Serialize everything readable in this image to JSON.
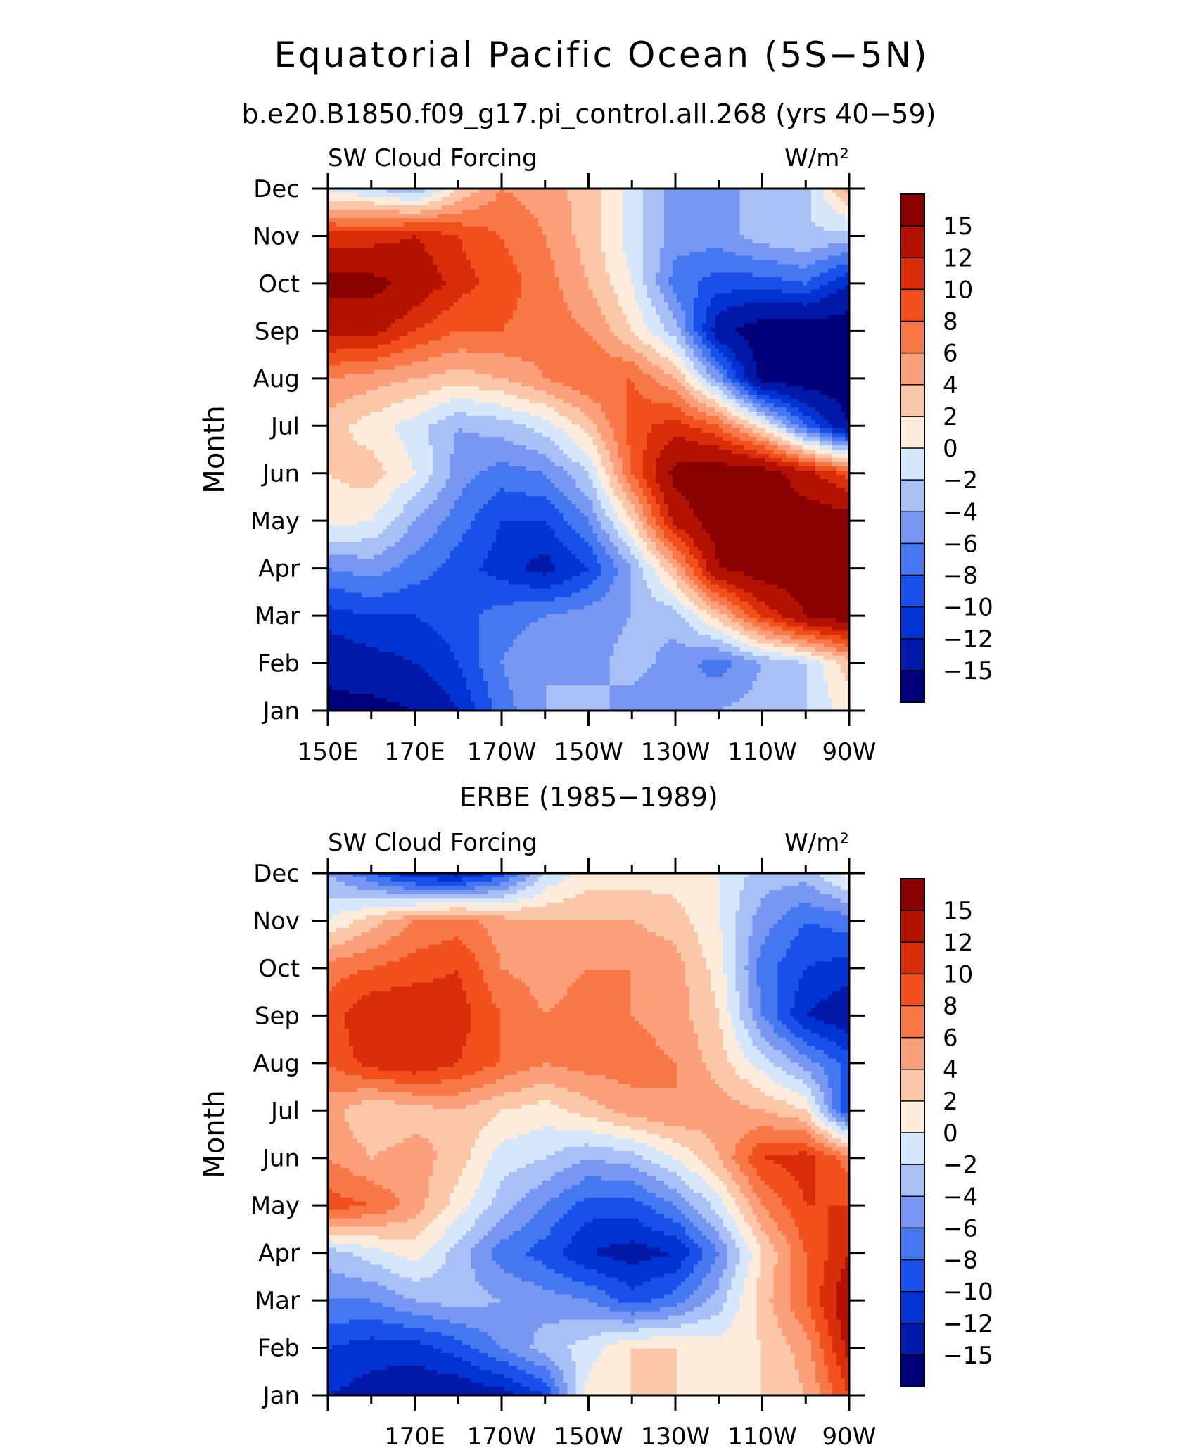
{
  "figure": {
    "title": "Equatorial Pacific Ocean (5S−5N)",
    "panels": [
      {
        "subtitle": "b.e20.B1850.f09_g17.pi_control.all.268 (yrs 40−59)"
      },
      {
        "subtitle": "ERBE (1985−1989)"
      }
    ]
  },
  "chart_data": [
    {
      "type": "heatmap",
      "title": "b.e20.B1850.f09_g17.pi_control.all.268 (yrs 40−59)",
      "variable_label": "SW Cloud Forcing",
      "units_label": "W/m²",
      "ylabel": "Month",
      "xlabel": "",
      "x_range": [
        150,
        270
      ],
      "x_ticks": [
        150,
        170,
        190,
        210,
        230,
        250,
        270
      ],
      "x_tick_labels": [
        "150E",
        "170E",
        "170W",
        "150W",
        "130W",
        "110W",
        "90W"
      ],
      "y_tick_labels": [
        "Jan",
        "Feb",
        "Mar",
        "Apr",
        "May",
        "Jun",
        "Jul",
        "Aug",
        "Sep",
        "Oct",
        "Nov",
        "Dec"
      ],
      "x_nodes": [
        150,
        160,
        170,
        180,
        190,
        200,
        210,
        220,
        230,
        240,
        250,
        260,
        270
      ],
      "values": [
        [
          -16,
          -16,
          -15,
          -12,
          -7,
          -4,
          -3,
          -5,
          -6,
          -4,
          -3,
          -2,
          1
        ],
        [
          -14,
          -13,
          -12,
          -10,
          -6,
          -4,
          -5,
          -3,
          -5,
          -7,
          -4,
          -2,
          3
        ],
        [
          -11,
          -10,
          -10,
          -9,
          -7,
          -6,
          -5,
          -4,
          -3,
          3,
          10,
          15,
          17
        ],
        [
          -6,
          -5,
          -7,
          -9,
          -11,
          -13,
          -10,
          -4,
          4,
          15,
          17,
          17,
          17
        ],
        [
          1,
          0,
          -4,
          -7,
          -10,
          -10,
          -6,
          2,
          13,
          17,
          17,
          17,
          17
        ],
        [
          2,
          3,
          0,
          -5,
          -7,
          -6,
          -2,
          8,
          16,
          17,
          17,
          13,
          9
        ],
        [
          3,
          1,
          -1,
          -4,
          -3,
          -1,
          3,
          9,
          11,
          8,
          1,
          -8,
          -15
        ],
        [
          6,
          5,
          4,
          3,
          4,
          6,
          8,
          8,
          4,
          -5,
          -16,
          -17,
          -17
        ],
        [
          13,
          13,
          10,
          8,
          8,
          7,
          6,
          2,
          -3,
          -14,
          -17,
          -17,
          -17
        ],
        [
          16,
          16,
          14,
          11,
          9,
          7,
          4,
          0,
          -7,
          -9,
          -9,
          -8,
          -12
        ],
        [
          11,
          11,
          12,
          10,
          8,
          6,
          3,
          -1,
          -5,
          -5,
          -3,
          -2,
          -3
        ],
        [
          -1,
          -2,
          -4,
          2,
          6,
          5,
          3,
          -1,
          -5,
          -5,
          -3,
          -3,
          5
        ]
      ],
      "colorbar_levels": [
        -15,
        -12,
        -10,
        -8,
        -6,
        -4,
        -2,
        0,
        2,
        4,
        6,
        8,
        10,
        12,
        15
      ],
      "colorbar_labels": [
        "−15",
        "−12",
        "−10",
        "−8",
        "−6",
        "−4",
        "−2",
        "0",
        "2",
        "4",
        "6",
        "8",
        "10",
        "12",
        "15"
      ],
      "colors": [
        "#00007a",
        "#0019a8",
        "#0033d1",
        "#1a50ea",
        "#4477f0",
        "#7797f3",
        "#a9c0f6",
        "#d6e6fb",
        "#fdebdb",
        "#fcc6a8",
        "#fba07a",
        "#f97847",
        "#f2511e",
        "#da2e0b",
        "#b41200",
        "#890000"
      ]
    },
    {
      "type": "heatmap",
      "title": "ERBE (1985−1989)",
      "variable_label": "SW Cloud Forcing",
      "units_label": "W/m²",
      "ylabel": "Month",
      "xlabel": "",
      "x_range": [
        150,
        270
      ],
      "x_ticks": [
        170,
        190,
        210,
        230,
        250,
        270
      ],
      "x_tick_labels": [
        "170E",
        "170W",
        "150W",
        "130W",
        "110W",
        "90W"
      ],
      "y_tick_labels": [
        "Jan",
        "Feb",
        "Mar",
        "Apr",
        "May",
        "Jun",
        "Jul",
        "Aug",
        "Sep",
        "Oct",
        "Nov",
        "Dec"
      ],
      "x_nodes": [
        150,
        160,
        170,
        180,
        190,
        200,
        210,
        220,
        230,
        240,
        250,
        260,
        270
      ],
      "values": [
        [
          -12,
          -13,
          -14,
          -14,
          -13,
          -10,
          1,
          2,
          2,
          1,
          2,
          4,
          10
        ],
        [
          -10,
          -11,
          -11,
          -9,
          -6,
          -3,
          -1,
          2,
          2,
          1,
          2,
          5,
          13
        ],
        [
          -6,
          -6,
          -4,
          -3,
          -4,
          -5,
          -6,
          -9,
          -7,
          -3,
          3,
          8,
          14
        ],
        [
          -3,
          -1,
          1,
          -3,
          -7,
          -9,
          -12,
          -13,
          -12,
          -6,
          2,
          8,
          12
        ],
        [
          9,
          8,
          5,
          1,
          -3,
          -6,
          -9,
          -9,
          -6,
          -1,
          6,
          10,
          10
        ],
        [
          6,
          4,
          5,
          3,
          -1,
          -2,
          -4,
          -3,
          0,
          4,
          10,
          11,
          7
        ],
        [
          5,
          2,
          3,
          4,
          2,
          1,
          3,
          5,
          6,
          5,
          4,
          2,
          -10
        ],
        [
          8,
          11,
          12,
          10,
          8,
          6,
          7,
          7,
          6,
          3,
          -1,
          -5,
          -9
        ],
        [
          9,
          12,
          12,
          11,
          8,
          6,
          7,
          6,
          5,
          2,
          -6,
          -12,
          -14
        ],
        [
          7,
          8,
          9,
          10,
          6,
          5,
          6,
          6,
          5,
          1,
          -7,
          -10,
          -11
        ],
        [
          0,
          3,
          6,
          7,
          5,
          4,
          4,
          4,
          3,
          0,
          -5,
          -8,
          -7
        ],
        [
          -4,
          -8,
          -12,
          -13,
          -9,
          -2,
          1,
          1,
          1,
          0,
          -3,
          -3,
          1
        ]
      ],
      "colorbar_levels": [
        -15,
        -12,
        -10,
        -8,
        -6,
        -4,
        -2,
        0,
        2,
        4,
        6,
        8,
        10,
        12,
        15
      ],
      "colorbar_labels": [
        "−15",
        "−12",
        "−10",
        "−8",
        "−6",
        "−4",
        "−2",
        "0",
        "2",
        "4",
        "6",
        "8",
        "10",
        "12",
        "15"
      ],
      "colors": [
        "#00007a",
        "#0019a8",
        "#0033d1",
        "#1a50ea",
        "#4477f0",
        "#7797f3",
        "#a9c0f6",
        "#d6e6fb",
        "#fdebdb",
        "#fcc6a8",
        "#fba07a",
        "#f97847",
        "#f2511e",
        "#da2e0b",
        "#b41200",
        "#890000"
      ]
    }
  ]
}
